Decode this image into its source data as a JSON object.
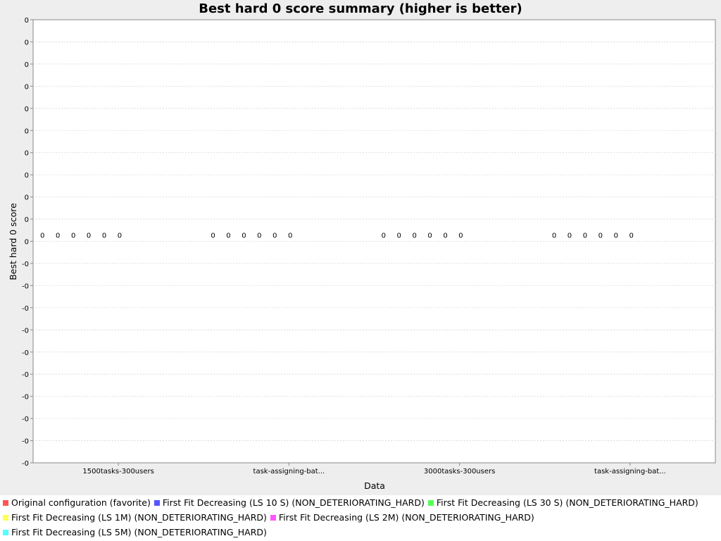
{
  "chart_data": {
    "type": "bar",
    "title": "Best hard 0 score summary (higher is better)",
    "xlabel": "Data",
    "ylabel": "Best hard 0 score",
    "categories": [
      "1500tasks-300users",
      "task-assigning-bat...",
      "3000tasks-300users",
      "task-assigning-bat..."
    ],
    "y_tick_labels": [
      "0",
      "0",
      "0",
      "0",
      "0",
      "0",
      "0",
      "0",
      "0",
      "0",
      "0",
      "-0",
      "-0",
      "-0",
      "-0",
      "-0",
      "-0",
      "-0",
      "-0",
      "-0",
      "-0"
    ],
    "grid": true,
    "legend_position": "bottom",
    "series": [
      {
        "name": "Original configuration (favorite)",
        "color": "#ff5555",
        "values": [
          0,
          0,
          0,
          0
        ],
        "labels": [
          "0",
          "0",
          "0",
          "0"
        ]
      },
      {
        "name": "First Fit Decreasing (LS 10 S) (NON_DETERIORATING_HARD)",
        "color": "#5555ff",
        "values": [
          0,
          0,
          0,
          0
        ],
        "labels": [
          "0",
          "0",
          "0",
          "0"
        ]
      },
      {
        "name": "First Fit Decreasing (LS 30 S) (NON_DETERIORATING_HARD)",
        "color": "#55ff55",
        "values": [
          0,
          0,
          0,
          0
        ],
        "labels": [
          "0",
          "0",
          "0",
          "0"
        ]
      },
      {
        "name": "First Fit Decreasing (LS 1M) (NON_DETERIORATING_HARD)",
        "color": "#ffff55",
        "values": [
          0,
          0,
          0,
          0
        ],
        "labels": [
          "0",
          "0",
          "0",
          "0"
        ]
      },
      {
        "name": "First Fit Decreasing (LS 2M) (NON_DETERIORATING_HARD)",
        "color": "#ff55ff",
        "values": [
          0,
          0,
          0,
          0
        ],
        "labels": [
          "0",
          "0",
          "0",
          "0"
        ]
      },
      {
        "name": "First Fit Decreasing (LS 5M) (NON_DETERIORATING_HARD)",
        "color": "#55ffff",
        "values": [
          0,
          0,
          0,
          0
        ],
        "labels": [
          "0",
          "0",
          "0",
          "0"
        ]
      }
    ]
  }
}
